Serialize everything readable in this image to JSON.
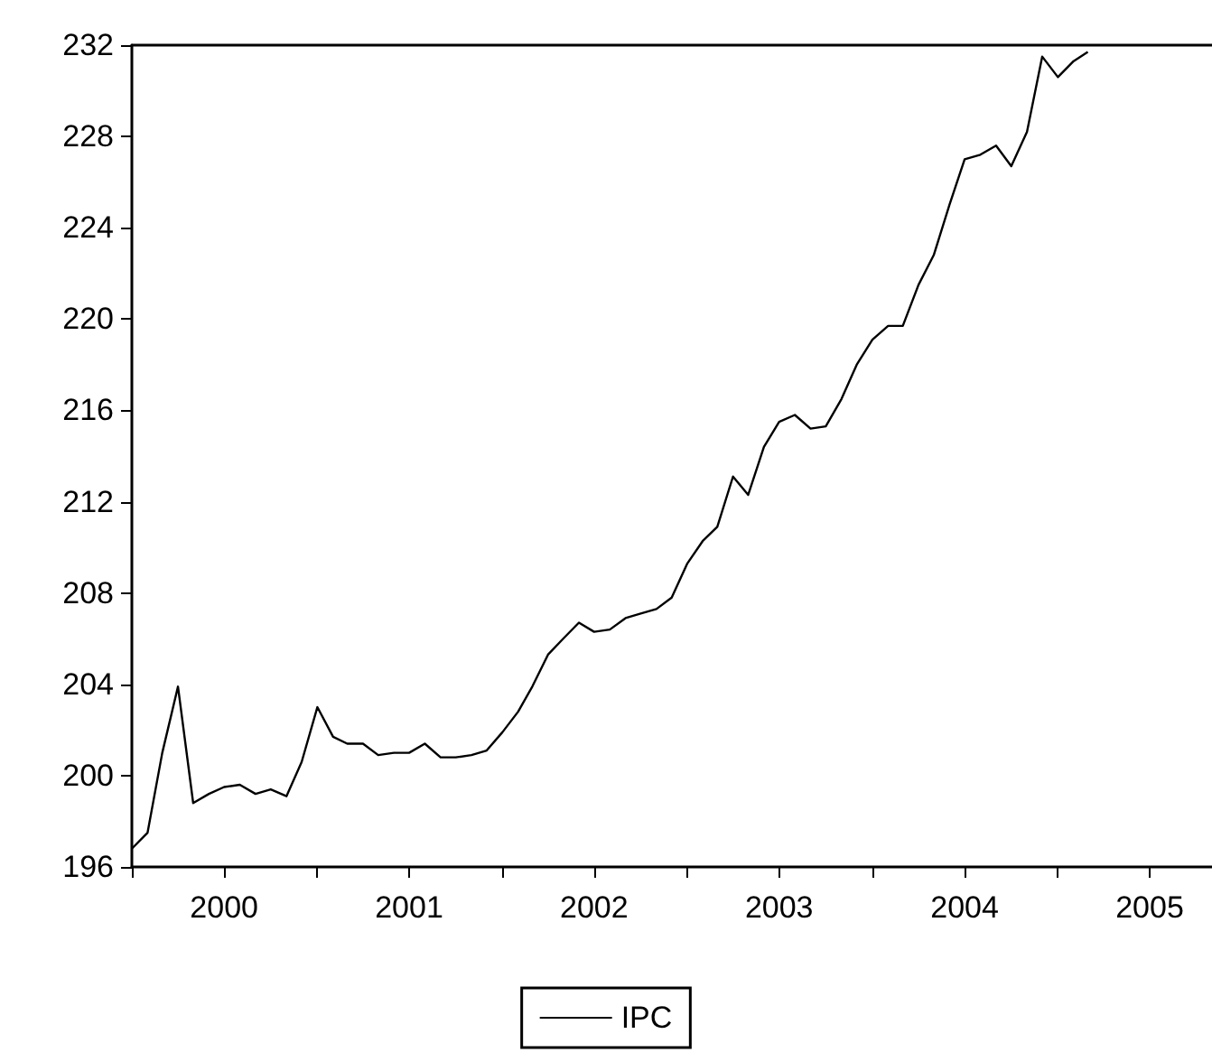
{
  "chart_data": {
    "type": "line",
    "x": [
      "2000-01",
      "2000-02",
      "2000-03",
      "2000-04",
      "2000-05",
      "2000-06",
      "2000-07",
      "2000-08",
      "2000-09",
      "2000-10",
      "2000-11",
      "2000-12",
      "2001-01",
      "2001-02",
      "2001-03",
      "2001-04",
      "2001-05",
      "2001-06",
      "2001-07",
      "2001-08",
      "2001-09",
      "2001-10",
      "2001-11",
      "2001-12",
      "2002-01",
      "2002-02",
      "2002-03",
      "2002-04",
      "2002-05",
      "2002-06",
      "2002-07",
      "2002-08",
      "2002-09",
      "2002-10",
      "2002-11",
      "2002-12",
      "2003-01",
      "2003-02",
      "2003-03",
      "2003-04",
      "2003-05",
      "2003-06",
      "2003-07",
      "2003-08",
      "2003-09",
      "2003-10",
      "2003-11",
      "2003-12",
      "2004-01",
      "2004-02",
      "2004-03",
      "2004-04",
      "2004-05",
      "2004-06",
      "2004-07",
      "2004-08",
      "2004-09",
      "2004-10",
      "2004-11",
      "2004-12",
      "2005-01",
      "2005-02",
      "2005-03"
    ],
    "series": [
      {
        "name": "IPC",
        "color": "#000000",
        "values": [
          196.8,
          197.5,
          201.0,
          203.9,
          198.8,
          199.2,
          199.5,
          199.6,
          199.2,
          199.4,
          199.1,
          200.6,
          203.0,
          201.7,
          201.4,
          201.4,
          200.9,
          201.0,
          201.0,
          201.4,
          200.8,
          200.8,
          200.9,
          201.1,
          201.9,
          202.8,
          203.9,
          205.3,
          206.0,
          206.7,
          206.3,
          206.4,
          206.9,
          207.1,
          207.3,
          207.8,
          209.3,
          210.3,
          210.9,
          213.1,
          212.3,
          214.4,
          215.5,
          215.8,
          215.2,
          215.3,
          216.5,
          218.0,
          219.1,
          219.7,
          219.7,
          221.5,
          222.8,
          225.0,
          227.0,
          227.2,
          227.6,
          226.7,
          228.2,
          231.5,
          230.6,
          231.3,
          231.7
        ]
      }
    ],
    "xlim": [
      "2000-01",
      "2005-11"
    ],
    "xticks": [
      {
        "value": "2000-01",
        "label": null
      },
      {
        "value": "2000-07",
        "label": "2000"
      },
      {
        "value": "2001-01",
        "label": null
      },
      {
        "value": "2001-07",
        "label": "2001"
      },
      {
        "value": "2002-01",
        "label": null
      },
      {
        "value": "2002-07",
        "label": "2002"
      },
      {
        "value": "2003-01",
        "label": null
      },
      {
        "value": "2003-07",
        "label": "2003"
      },
      {
        "value": "2004-01",
        "label": null
      },
      {
        "value": "2004-07",
        "label": "2004"
      },
      {
        "value": "2005-01",
        "label": null
      },
      {
        "value": "2005-07",
        "label": "2005"
      }
    ],
    "ylim": [
      196,
      232
    ],
    "yticks": [
      196,
      200,
      204,
      208,
      212,
      216,
      220,
      224,
      228,
      232
    ],
    "grid": false,
    "legend": "bottom",
    "marker": "none",
    "line_style": "solid"
  }
}
